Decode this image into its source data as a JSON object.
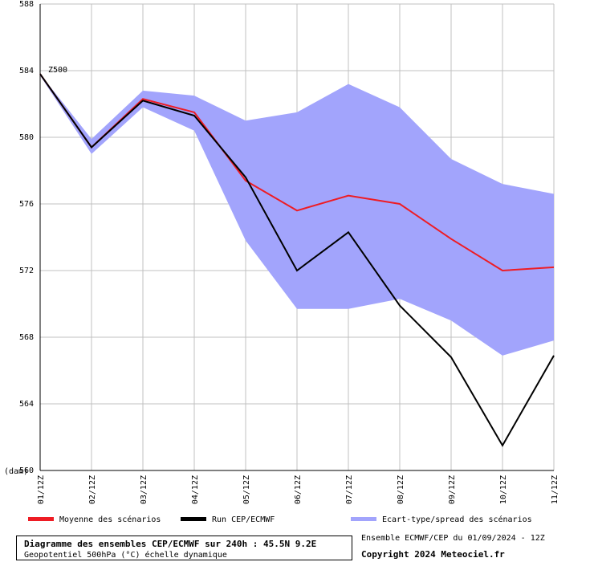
{
  "chart_data": {
    "type": "line",
    "title": "Diagramme des ensembles CEP/ECMWF sur 240h : 45.5N 9.2E",
    "subtitle": "Geopotentiel 500hPa (°C) échelle dynamique",
    "series_label": "Z500",
    "ylabel": "(dam)",
    "ylim": [
      560,
      588
    ],
    "yticks": [
      560,
      564,
      568,
      572,
      576,
      580,
      584,
      588
    ],
    "ytick_labels": [
      "560",
      "564",
      "568",
      "572",
      "576",
      "580",
      "584",
      "588"
    ],
    "categories": [
      "01/12Z",
      "02/12Z",
      "03/12Z",
      "04/12Z",
      "05/12Z",
      "06/12Z",
      "07/12Z",
      "08/12Z",
      "09/12Z",
      "10/12Z",
      "11/12Z"
    ],
    "band": {
      "name": "Ecart-type/spread des scénarios",
      "color": "#a2a4fc",
      "upper": [
        583.8,
        579.9,
        582.8,
        582.5,
        581.0,
        581.5,
        583.2,
        581.8,
        578.7,
        577.2,
        576.6
      ],
      "lower": [
        583.7,
        579.0,
        581.8,
        580.4,
        573.8,
        569.7,
        569.7,
        570.3,
        569.0,
        566.9,
        567.8
      ]
    },
    "series": [
      {
        "name": "Moyenne des scénarios",
        "color": "#ee1c24",
        "values": [
          583.8,
          579.4,
          582.3,
          581.5,
          577.4,
          575.6,
          576.5,
          576.0,
          573.9,
          572.0,
          572.2
        ]
      },
      {
        "name": "Run CEP/ECMWF",
        "color": "#000000",
        "values": [
          583.8,
          579.4,
          582.2,
          581.3,
          577.6,
          572.0,
          574.3,
          569.9,
          566.8,
          561.5,
          566.9
        ]
      }
    ],
    "legend": [
      {
        "label": "Moyenne des scénarios",
        "color": "#ee1c24"
      },
      {
        "label": "Run CEP/ECMWF",
        "color": "#000000"
      },
      {
        "label": "Ecart-type/spread des scénarios",
        "color": "#a2a4fc"
      }
    ]
  },
  "footer": {
    "title": "Diagramme des ensembles CEP/ECMWF sur 240h : 45.5N 9.2E",
    "subtitle": "Geopotentiel 500hPa (°C) échelle dynamique",
    "run_info": "Ensemble ECMWF/CEP du 01/09/2024 - 12Z",
    "copyright": "Copyright 2024 Meteociel.fr"
  }
}
